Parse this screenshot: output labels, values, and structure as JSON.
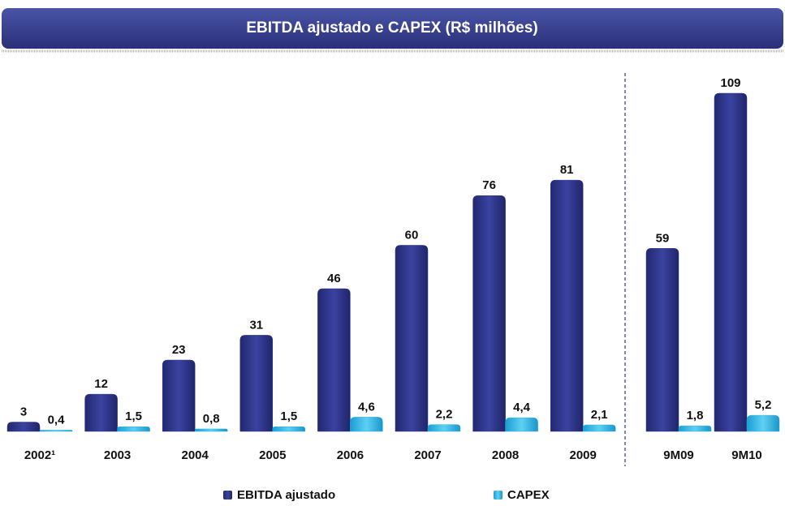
{
  "chart_data": {
    "type": "bar",
    "title": "EBITDA ajustado e CAPEX (R$ milhões)",
    "categories": [
      "2002¹",
      "2003",
      "2004",
      "2005",
      "2006",
      "2007",
      "2008",
      "2009",
      "9M09",
      "9M10"
    ],
    "series": [
      {
        "name": "EBITDA ajustado",
        "color": "#2f3585",
        "values": [
          3,
          12,
          23,
          31,
          46,
          60,
          76,
          81,
          59,
          109
        ]
      },
      {
        "name": "CAPEX",
        "color": "#2bb5e6",
        "values": [
          0.4,
          1.5,
          0.8,
          1.5,
          4.6,
          2.2,
          4.4,
          2.1,
          1.8,
          5.2
        ],
        "value_labels": [
          "0,4",
          "1,5",
          "0,8",
          "1,5",
          "4,6",
          "2,2",
          "4,4",
          "2,1",
          "1,8",
          "5,2"
        ]
      }
    ],
    "legend": "bottom"
  }
}
